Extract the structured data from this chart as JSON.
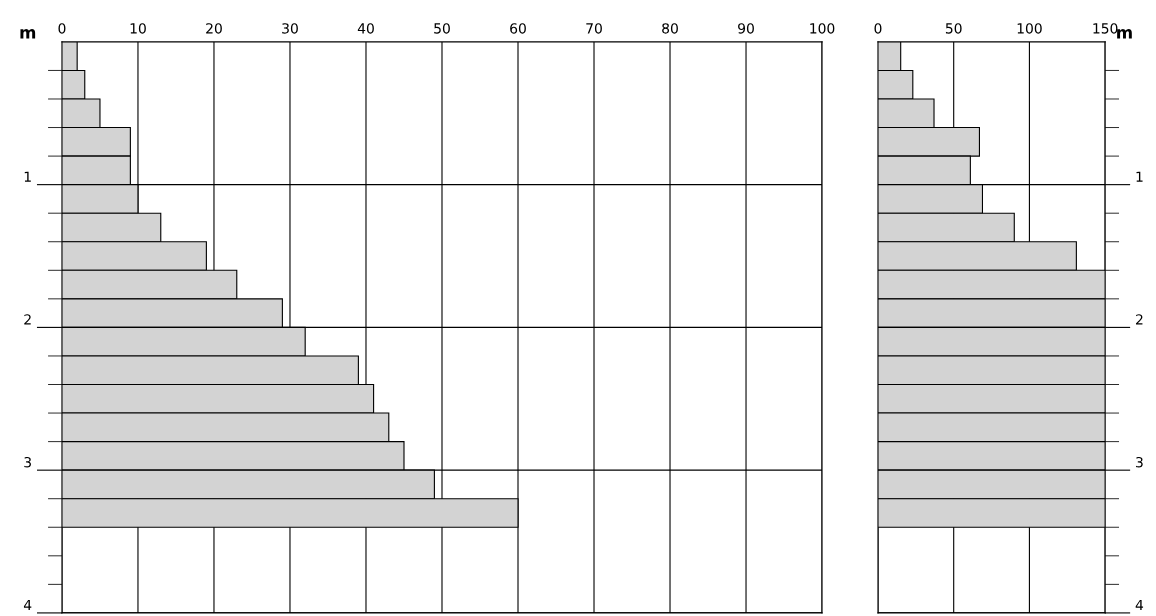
{
  "chart_data": [
    {
      "type": "histogram",
      "orientation": "horizontal",
      "ylabel": "m",
      "color": "#d3d3d3",
      "bins": [
        0,
        0.2,
        0.4,
        0.6,
        0.8,
        1.0,
        1.2,
        1.4,
        1.6,
        1.8,
        2.0,
        2.2,
        2.4,
        2.6,
        2.8,
        3.0,
        3.2,
        3.4
      ],
      "values": [
        2,
        3,
        5,
        9,
        9,
        10,
        13,
        19,
        23,
        29,
        32,
        39,
        41,
        43,
        45,
        49,
        60
      ],
      "xlim": [
        0,
        100
      ],
      "xticks": [
        0,
        10,
        20,
        30,
        40,
        50,
        60,
        70,
        80,
        90,
        100
      ],
      "ylim": [
        4,
        0
      ],
      "yticks": [
        {
          "value": 0.2,
          "label": null
        },
        {
          "value": 0.4,
          "label": null
        },
        {
          "value": 0.6,
          "label": null
        },
        {
          "value": 0.8,
          "label": null
        },
        1,
        {
          "value": 1.2,
          "label": null
        },
        {
          "value": 1.4,
          "label": null
        },
        {
          "value": 1.6,
          "label": null
        },
        {
          "value": 1.8,
          "label": null
        },
        2,
        {
          "value": 2.2,
          "label": null
        },
        {
          "value": 2.4,
          "label": null
        },
        {
          "value": 2.6,
          "label": null
        },
        {
          "value": 2.8,
          "label": null
        },
        3,
        {
          "value": 3.2,
          "label": null
        },
        {
          "value": 3.4,
          "label": null
        },
        {
          "value": 3.6,
          "label": null
        },
        {
          "value": 3.8,
          "label": null
        },
        4
      ],
      "grid": true
    },
    {
      "type": "histogram",
      "orientation": "horizontal",
      "ylabel": "m",
      "color": "#d3d3d3",
      "bins": [
        0,
        0.2,
        0.4,
        0.6,
        0.8,
        1.0,
        1.2,
        1.4,
        1.6,
        1.8,
        2.0,
        2.2,
        2.4,
        2.6,
        2.8,
        3.0,
        3.2,
        3.4
      ],
      "values": [
        15,
        23,
        37,
        67,
        61,
        69,
        90,
        131,
        150,
        150,
        150,
        150,
        150,
        150,
        150,
        150,
        150
      ],
      "xlim": [
        0,
        150
      ],
      "xticks": [
        0,
        50,
        100,
        150
      ],
      "ylim": [
        4,
        0
      ],
      "yticks": [
        {
          "value": 0.2,
          "label": null
        },
        {
          "value": 0.4,
          "label": null
        },
        {
          "value": 0.6,
          "label": null
        },
        {
          "value": 0.8,
          "label": null
        },
        1,
        {
          "value": 1.2,
          "label": null
        },
        {
          "value": 1.4,
          "label": null
        },
        {
          "value": 1.6,
          "label": null
        },
        {
          "value": 1.8,
          "label": null
        },
        2,
        {
          "value": 2.2,
          "label": null
        },
        {
          "value": 2.4,
          "label": null
        },
        {
          "value": 2.6,
          "label": null
        },
        {
          "value": 2.8,
          "label": null
        },
        3,
        {
          "value": 3.2,
          "label": null
        },
        {
          "value": 3.4,
          "label": null
        },
        {
          "value": 3.6,
          "label": null
        },
        {
          "value": 3.8,
          "label": null
        },
        4
      ],
      "grid": true
    }
  ]
}
